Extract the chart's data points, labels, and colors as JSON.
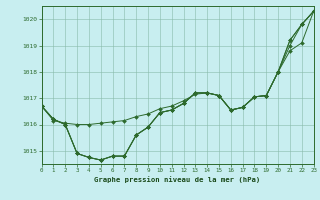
{
  "title": "Graphe pression niveau de la mer (hPa)",
  "bg_color": "#c8eef0",
  "line_color": "#2d6a2d",
  "xlim": [
    0,
    23
  ],
  "ylim": [
    1014.5,
    1020.5
  ],
  "yticks": [
    1015,
    1016,
    1017,
    1018,
    1019,
    1020
  ],
  "xticks": [
    0,
    1,
    2,
    3,
    4,
    5,
    6,
    7,
    8,
    9,
    10,
    11,
    12,
    13,
    14,
    15,
    16,
    17,
    18,
    19,
    20,
    21,
    22,
    23
  ],
  "lines": [
    [
      1016.7,
      1016.2,
      1016.0,
      1014.9,
      1014.75,
      1014.65,
      1014.8,
      1014.8,
      1015.6,
      1015.9,
      1016.45,
      1016.55,
      1016.8,
      1017.2,
      1017.2,
      1017.1,
      1016.55,
      1016.65,
      1017.05,
      1017.1,
      1018.0,
      1019.2,
      1019.8,
      1020.3
    ],
    [
      1016.7,
      1016.2,
      1016.0,
      1014.9,
      1014.75,
      1014.65,
      1014.8,
      1014.8,
      1015.6,
      1015.9,
      1016.45,
      1016.55,
      1016.8,
      1017.2,
      1017.2,
      1017.1,
      1016.55,
      1016.65,
      1017.05,
      1017.1,
      1018.0,
      1018.8,
      1019.1,
      1020.3
    ],
    [
      1016.7,
      1016.2,
      1016.0,
      1014.9,
      1014.75,
      1014.65,
      1014.8,
      1014.8,
      1015.6,
      1015.9,
      1016.45,
      1016.55,
      1016.8,
      1017.2,
      1017.2,
      1017.1,
      1016.55,
      1016.65,
      1017.05,
      1017.1,
      1018.0,
      1019.0,
      1019.8,
      1020.3
    ],
    [
      1016.7,
      1016.15,
      1016.05,
      1016.0,
      1016.0,
      1016.05,
      1016.1,
      1016.15,
      1016.3,
      1016.4,
      1016.6,
      1016.7,
      1016.9,
      1017.15,
      1017.2,
      1017.1,
      1016.55,
      1016.65,
      1017.05,
      1017.1,
      1018.0,
      1019.2,
      1019.8,
      1020.3
    ]
  ]
}
